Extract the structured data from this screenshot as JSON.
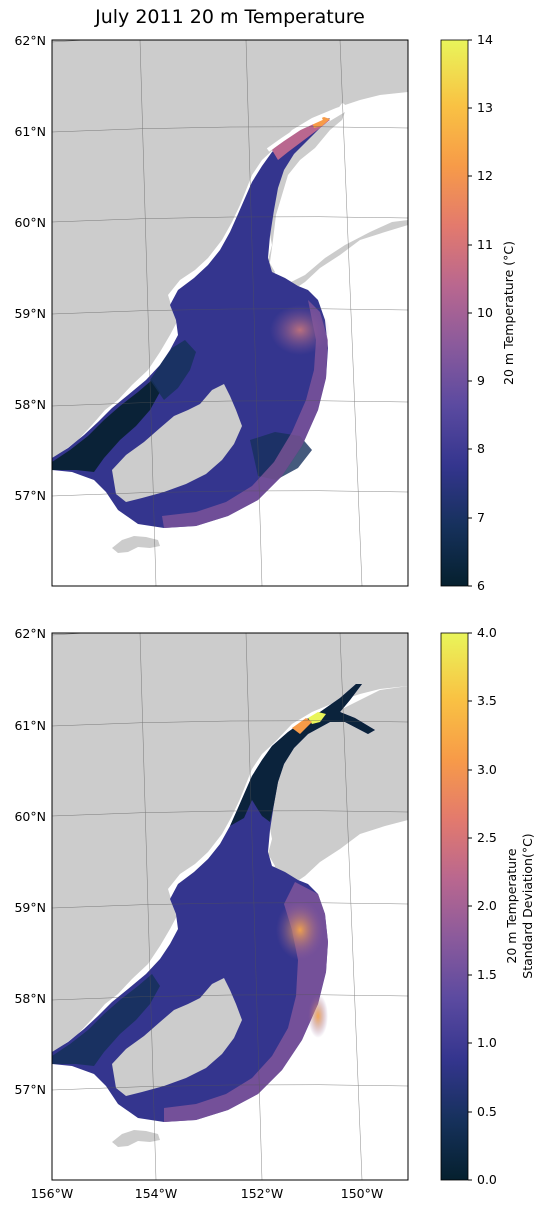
{
  "title": "July 2011 20 m Temperature",
  "colors": {
    "land": "#cccccc",
    "frame": "#000000",
    "gridline": "#555555",
    "cmap": [
      "#05202e",
      "#16315c",
      "#34358e",
      "#5b4aa0",
      "#8a5a9c",
      "#b9678f",
      "#e37a6d",
      "#f79b48",
      "#f9c243",
      "#e9f55a"
    ]
  },
  "panels": [
    {
      "id": "top",
      "lat_labels": [
        "62°N",
        "61°N",
        "60°N",
        "59°N",
        "58°N",
        "57°N"
      ],
      "colorbar": {
        "label": "20 m Temperature (°C)",
        "min": 6,
        "max": 14,
        "ticks": [
          "6",
          "7",
          "8",
          "9",
          "10",
          "11",
          "12",
          "13",
          "14"
        ]
      }
    },
    {
      "id": "bottom",
      "lat_labels": [
        "62°N",
        "61°N",
        "60°N",
        "59°N",
        "58°N",
        "57°N"
      ],
      "lon_labels": [
        "156°W",
        "154°W",
        "152°W",
        "150°W"
      ],
      "colorbar": {
        "label_line1": "20 m Temperature",
        "label_line2": "Standard Deviation(°C)",
        "min": 0,
        "max": 4,
        "ticks": [
          "0.0",
          "0.5",
          "1.0",
          "1.5",
          "2.0",
          "2.5",
          "3.0",
          "3.5",
          "4.0"
        ]
      }
    }
  ]
}
